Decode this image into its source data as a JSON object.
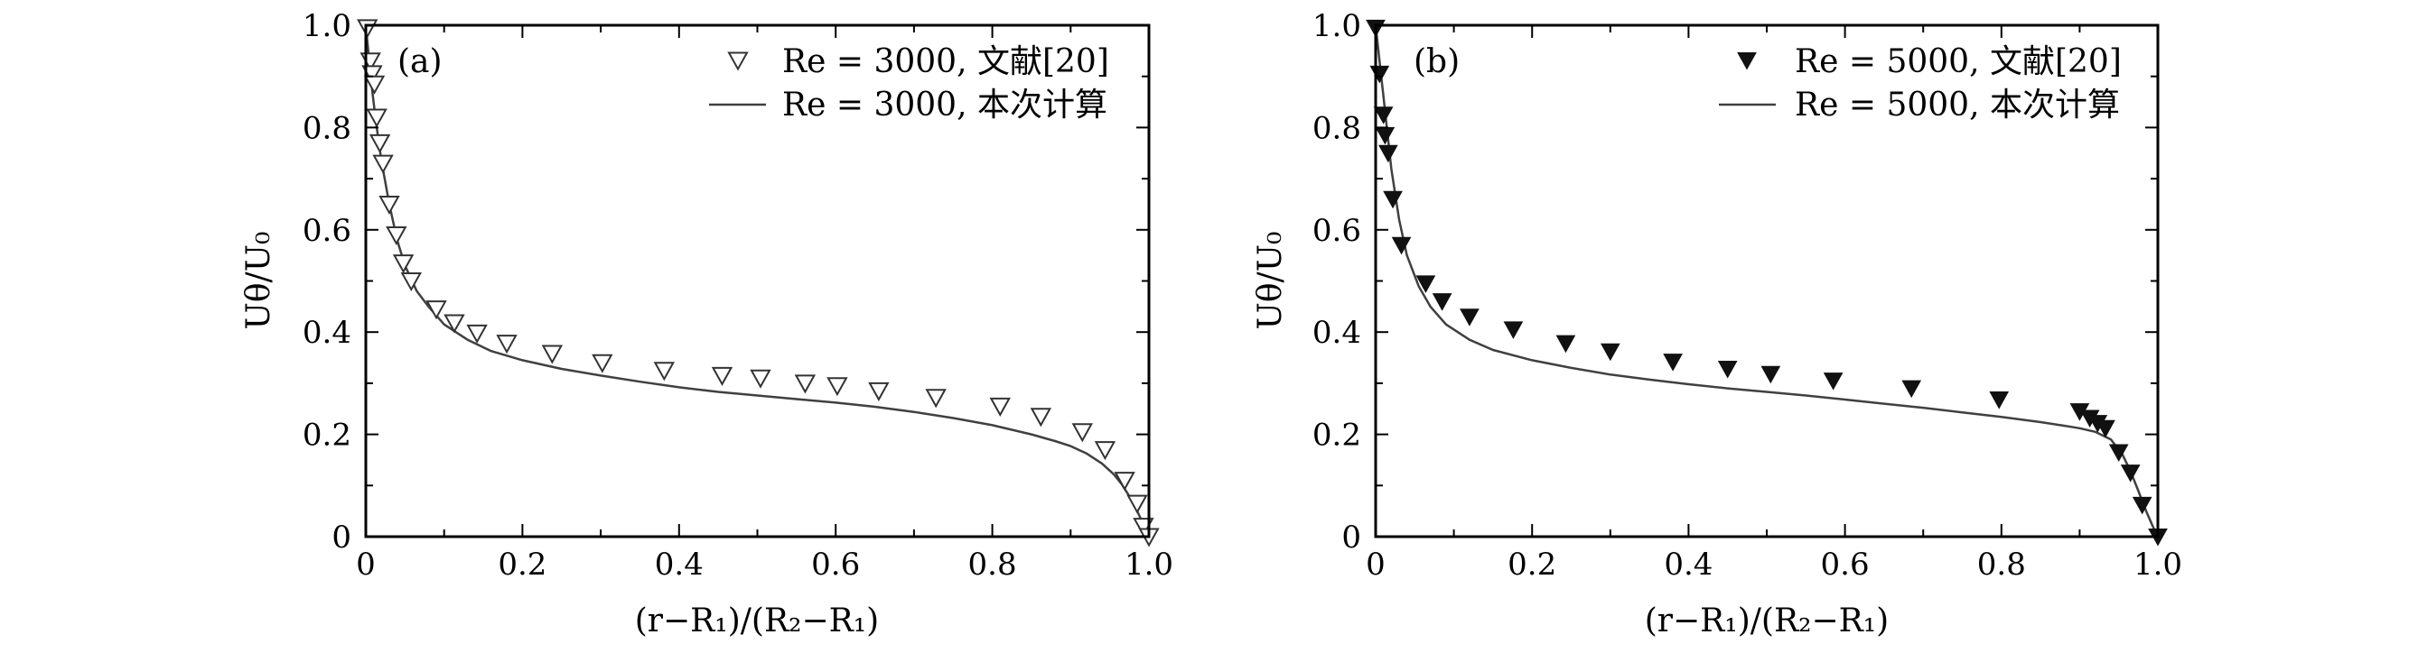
{
  "chart_data": [
    {
      "type": "scatter",
      "panel_label": "(a)",
      "xlabel": "(r−R₁)/(R₂−R₁)",
      "ylabel": "Uθ/U₀",
      "xlim": [
        0,
        1.0
      ],
      "ylim": [
        0,
        1.0
      ],
      "x_ticks": [
        0,
        0.2,
        0.4,
        0.6,
        0.8,
        1.0
      ],
      "x_tick_labels": [
        "0",
        "0.2",
        "0.4",
        "0.6",
        "0.8",
        "1.0"
      ],
      "y_ticks": [
        0,
        0.2,
        0.4,
        0.6,
        0.8,
        1.0
      ],
      "y_tick_labels": [
        "0",
        "0.2",
        "0.4",
        "0.6",
        "0.8",
        "1.0"
      ],
      "grid": false,
      "legend_position": "top-right",
      "series": [
        {
          "name": "Re = 3000, 文献[20]",
          "kind": "markers",
          "marker": "open-triangle-down",
          "color": "#333333",
          "points": [
            [
              0.002,
              0.995
            ],
            [
              0.006,
              0.93
            ],
            [
              0.008,
              0.905
            ],
            [
              0.011,
              0.885
            ],
            [
              0.014,
              0.82
            ],
            [
              0.018,
              0.77
            ],
            [
              0.022,
              0.73
            ],
            [
              0.03,
              0.65
            ],
            [
              0.039,
              0.59
            ],
            [
              0.048,
              0.535
            ],
            [
              0.058,
              0.5
            ],
            [
              0.09,
              0.445
            ],
            [
              0.113,
              0.418
            ],
            [
              0.142,
              0.398
            ],
            [
              0.18,
              0.378
            ],
            [
              0.238,
              0.358
            ],
            [
              0.302,
              0.34
            ],
            [
              0.381,
              0.325
            ],
            [
              0.455,
              0.315
            ],
            [
              0.504,
              0.31
            ],
            [
              0.561,
              0.3
            ],
            [
              0.602,
              0.295
            ],
            [
              0.655,
              0.285
            ],
            [
              0.728,
              0.272
            ],
            [
              0.81,
              0.255
            ],
            [
              0.862,
              0.235
            ],
            [
              0.915,
              0.205
            ],
            [
              0.944,
              0.17
            ],
            [
              0.969,
              0.11
            ],
            [
              0.985,
              0.065
            ],
            [
              0.993,
              0.02
            ],
            [
              1.0,
              0.0
            ]
          ]
        },
        {
          "name": "Re = 3000, 本次计算",
          "kind": "line",
          "color": "#404040",
          "points": [
            [
              0.0,
              1.0
            ],
            [
              0.004,
              0.935
            ],
            [
              0.008,
              0.875
            ],
            [
              0.013,
              0.81
            ],
            [
              0.02,
              0.735
            ],
            [
              0.03,
              0.65
            ],
            [
              0.04,
              0.58
            ],
            [
              0.05,
              0.53
            ],
            [
              0.065,
              0.48
            ],
            [
              0.08,
              0.45
            ],
            [
              0.1,
              0.415
            ],
            [
              0.13,
              0.385
            ],
            [
              0.16,
              0.363
            ],
            [
              0.2,
              0.345
            ],
            [
              0.25,
              0.328
            ],
            [
              0.3,
              0.315
            ],
            [
              0.35,
              0.303
            ],
            [
              0.4,
              0.292
            ],
            [
              0.45,
              0.283
            ],
            [
              0.5,
              0.276
            ],
            [
              0.55,
              0.269
            ],
            [
              0.6,
              0.262
            ],
            [
              0.65,
              0.254
            ],
            [
              0.7,
              0.244
            ],
            [
              0.75,
              0.232
            ],
            [
              0.8,
              0.218
            ],
            [
              0.85,
              0.2
            ],
            [
              0.88,
              0.187
            ],
            [
              0.9,
              0.177
            ],
            [
              0.92,
              0.163
            ],
            [
              0.94,
              0.143
            ],
            [
              0.955,
              0.122
            ],
            [
              0.965,
              0.103
            ],
            [
              0.975,
              0.079
            ],
            [
              0.985,
              0.05
            ],
            [
              0.993,
              0.024
            ],
            [
              1.0,
              0.0
            ]
          ]
        }
      ]
    },
    {
      "type": "scatter",
      "panel_label": "(b)",
      "xlabel": "(r−R₁)/(R₂−R₁)",
      "ylabel": "Uθ/U₀",
      "xlim": [
        0,
        1.0
      ],
      "ylim": [
        0,
        1.0
      ],
      "x_ticks": [
        0,
        0.2,
        0.4,
        0.6,
        0.8,
        1.0
      ],
      "x_tick_labels": [
        "0",
        "0.2",
        "0.4",
        "0.6",
        "0.8",
        "1.0"
      ],
      "y_ticks": [
        0,
        0.2,
        0.4,
        0.6,
        0.8,
        1.0
      ],
      "y_tick_labels": [
        "0",
        "0.2",
        "0.4",
        "0.6",
        "0.8",
        "1.0"
      ],
      "grid": false,
      "legend_position": "top-right",
      "series": [
        {
          "name": "Re = 5000, 文献[20]",
          "kind": "markers",
          "marker": "filled-triangle-down",
          "color": "#111111",
          "points": [
            [
              0.0,
              0.995
            ],
            [
              0.005,
              0.905
            ],
            [
              0.01,
              0.825
            ],
            [
              0.012,
              0.785
            ],
            [
              0.016,
              0.75
            ],
            [
              0.022,
              0.66
            ],
            [
              0.033,
              0.57
            ],
            [
              0.064,
              0.495
            ],
            [
              0.085,
              0.46
            ],
            [
              0.12,
              0.43
            ],
            [
              0.176,
              0.405
            ],
            [
              0.243,
              0.378
            ],
            [
              0.3,
              0.362
            ],
            [
              0.38,
              0.342
            ],
            [
              0.45,
              0.328
            ],
            [
              0.505,
              0.318
            ],
            [
              0.585,
              0.305
            ],
            [
              0.685,
              0.29
            ],
            [
              0.797,
              0.268
            ],
            [
              0.9,
              0.245
            ],
            [
              0.913,
              0.232
            ],
            [
              0.923,
              0.222
            ],
            [
              0.933,
              0.212
            ],
            [
              0.95,
              0.165
            ],
            [
              0.965,
              0.125
            ],
            [
              0.98,
              0.062
            ],
            [
              1.0,
              0.0
            ]
          ]
        },
        {
          "name": "Re = 5000, 本次计算",
          "kind": "line",
          "color": "#404040",
          "points": [
            [
              0.0,
              1.0
            ],
            [
              0.005,
              0.93
            ],
            [
              0.01,
              0.86
            ],
            [
              0.015,
              0.79
            ],
            [
              0.02,
              0.72
            ],
            [
              0.03,
              0.62
            ],
            [
              0.04,
              0.55
            ],
            [
              0.055,
              0.49
            ],
            [
              0.07,
              0.45
            ],
            [
              0.09,
              0.415
            ],
            [
              0.12,
              0.385
            ],
            [
              0.15,
              0.365
            ],
            [
              0.2,
              0.345
            ],
            [
              0.25,
              0.33
            ],
            [
              0.3,
              0.317
            ],
            [
              0.35,
              0.307
            ],
            [
              0.4,
              0.298
            ],
            [
              0.45,
              0.29
            ],
            [
              0.5,
              0.283
            ],
            [
              0.55,
              0.276
            ],
            [
              0.6,
              0.268
            ],
            [
              0.65,
              0.26
            ],
            [
              0.7,
              0.252
            ],
            [
              0.75,
              0.243
            ],
            [
              0.8,
              0.234
            ],
            [
              0.85,
              0.224
            ],
            [
              0.88,
              0.217
            ],
            [
              0.9,
              0.212
            ],
            [
              0.92,
              0.205
            ],
            [
              0.94,
              0.19
            ],
            [
              0.955,
              0.16
            ],
            [
              0.965,
              0.128
            ],
            [
              0.975,
              0.09
            ],
            [
              0.985,
              0.05
            ],
            [
              0.993,
              0.022
            ],
            [
              1.0,
              0.0
            ]
          ]
        }
      ]
    }
  ]
}
